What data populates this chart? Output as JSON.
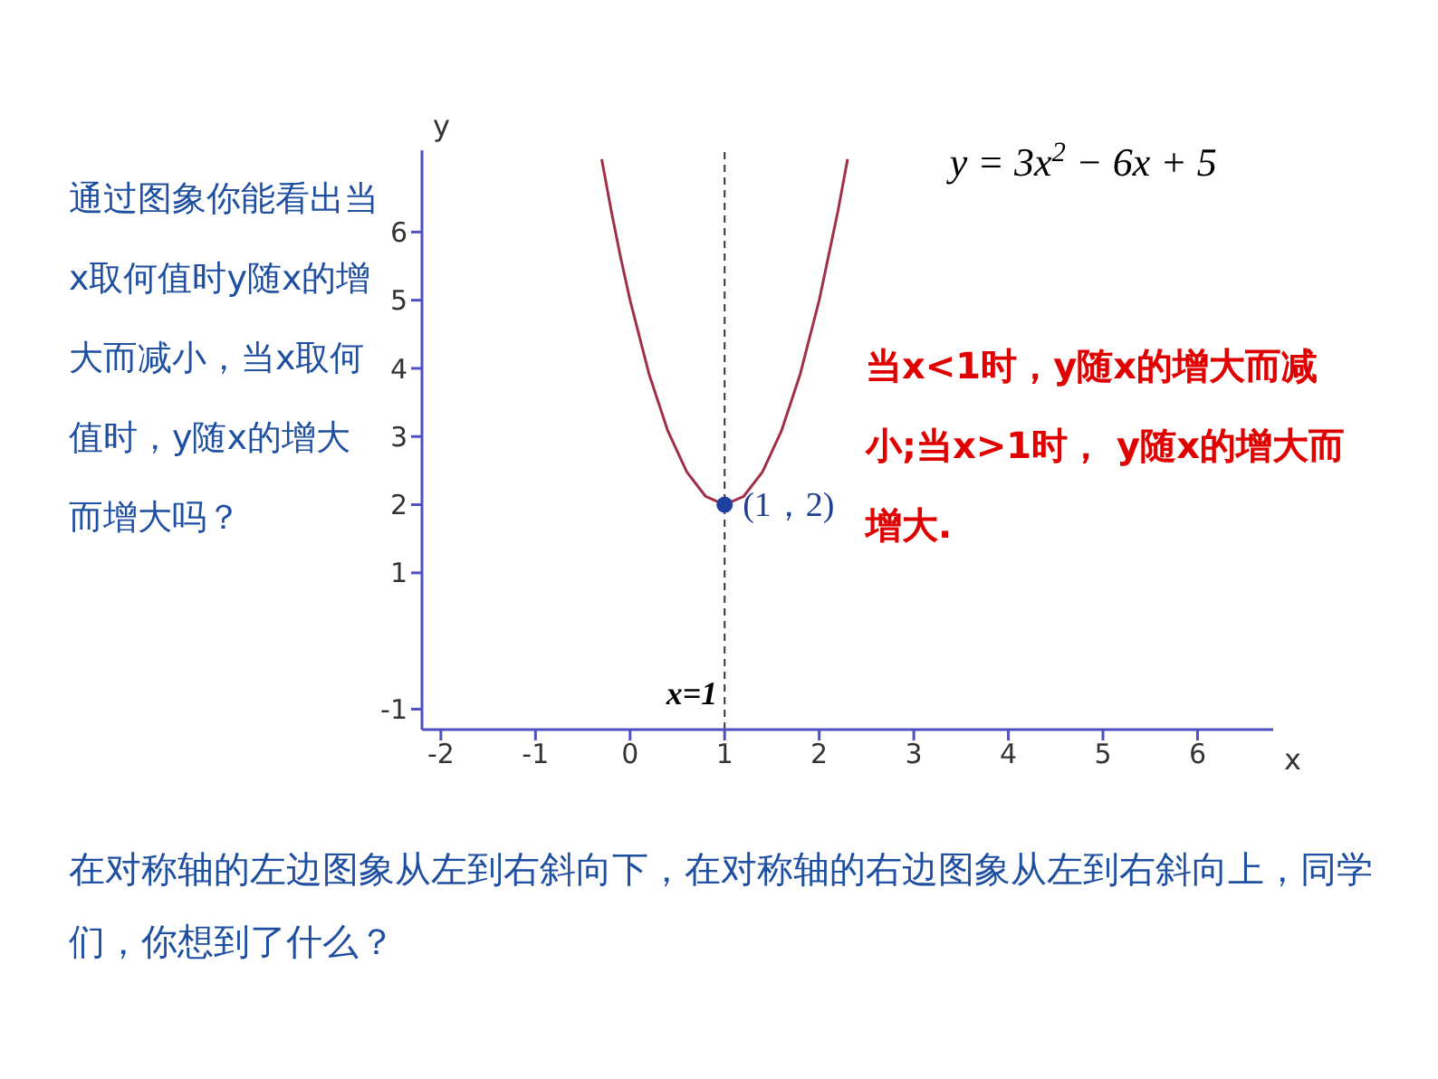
{
  "chart_data": {
    "type": "line",
    "title": "y = 3x$^{2}$ − 6x + 5",
    "xlabel": "x",
    "ylabel": "y",
    "xlim": [
      -2.2,
      6.8
    ],
    "ylim": [
      -1.3,
      7.2
    ],
    "xticks": [
      -2,
      -1,
      0,
      1,
      2,
      3,
      4,
      5,
      6
    ],
    "yticks": [
      -1,
      1,
      2,
      3,
      4,
      5,
      6
    ],
    "grid": false,
    "legend": false,
    "series": [
      {
        "color": "#a0304a",
        "marker": "none",
        "x": [
          -0.3,
          -0.2,
          -0.1,
          0,
          0.2,
          0.4,
          0.6,
          0.8,
          1,
          1.2,
          1.4,
          1.6,
          1.8,
          2,
          2.2,
          2.3
        ],
        "values": [
          7.07,
          6.32,
          5.63,
          5,
          3.92,
          3.08,
          2.48,
          2.12,
          2,
          2.12,
          2.48,
          3.08,
          3.92,
          5,
          6.32,
          7.07
        ]
      },
      {
        "type": "scatter",
        "color": "#2040a0",
        "marker": "circle",
        "x": [
          1
        ],
        "values": [
          2
        ]
      }
    ],
    "ref_lines": [
      {
        "axis": "x",
        "value": 1,
        "label": "x=1",
        "color": "#333333",
        "line_style": "dashed"
      }
    ],
    "annotations": [
      "通过图象你能看出当x取何值时y随x的增大而减小，当x取何值时，y随x的增大而增大吗？",
      "当x<1时，y随x的增大而减小;当x>1时， y随x的增大而增大.",
      "在对称轴的左边图象从左到右斜向下，在对称轴的右边图象从左到右斜向上，同学们，你想到了什么？",
      {
        "text": "(1，2)",
        "x": 1,
        "y": 2
      }
    ]
  }
}
